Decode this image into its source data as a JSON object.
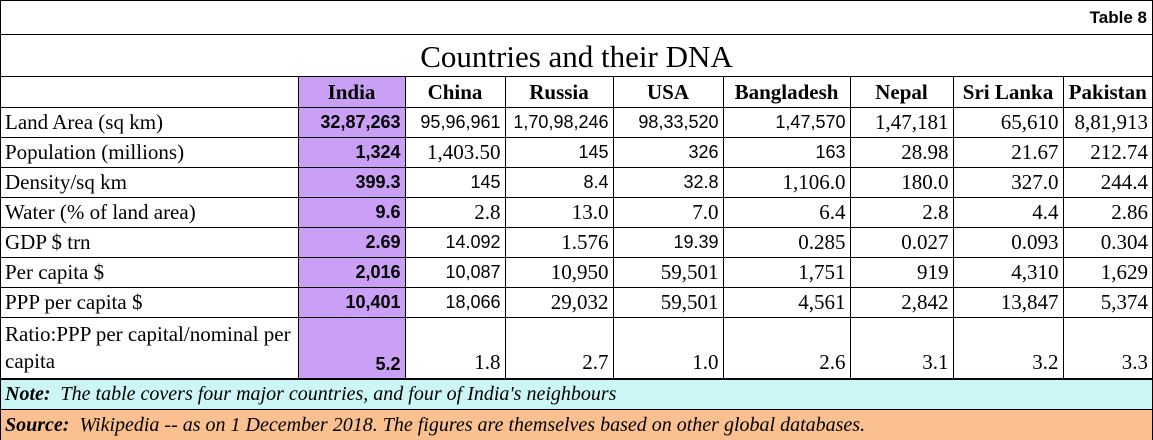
{
  "table_tag": "Table 8",
  "title": "Countries and their DNA",
  "columns": [
    "India",
    "China",
    "Russia",
    "USA",
    "Bangladesh",
    "Nepal",
    "Sri Lanka",
    "Pakistan"
  ],
  "rows": [
    {
      "label": "Land Area (sq km)",
      "values": [
        "32,87,263",
        "95,96,961",
        "1,70,98,246",
        "98,33,520",
        "1,47,570",
        "1,47,181",
        "65,610",
        "8,81,913"
      ]
    },
    {
      "label": "Population (millions)",
      "values": [
        "1,324",
        "1,403.50",
        "145",
        "326",
        "163",
        "28.98",
        "21.67",
        "212.74"
      ]
    },
    {
      "label": "Density/sq km",
      "values": [
        "399.3",
        "145",
        "8.4",
        "32.8",
        "1,106.0",
        "180.0",
        "327.0",
        "244.4"
      ]
    },
    {
      "label": "Water (% of land area)",
      "values": [
        "9.6",
        "2.8",
        "13.0",
        "7.0",
        "6.4",
        "2.8",
        "4.4",
        "2.86"
      ]
    },
    {
      "label": "GDP $ trn",
      "values": [
        "2.69",
        "14.092",
        "1.576",
        "19.39",
        "0.285",
        "0.027",
        "0.093",
        "0.304"
      ]
    },
    {
      "label": "Per capita $",
      "values": [
        "2,016",
        "10,087",
        "10,950",
        "59,501",
        "1,751",
        "919",
        "4,310",
        "1,629"
      ]
    },
    {
      "label": "PPP per capita $",
      "values": [
        "10,401",
        "18,066",
        "29,032",
        "59,501",
        "4,561",
        "2,842",
        "13,847",
        "5,374"
      ]
    },
    {
      "label": "Ratio:PPP per capital/nominal per capita",
      "values": [
        "5.2",
        "1.8",
        "2.7",
        "1.0",
        "2.6",
        "3.1",
        "3.2",
        "3.3"
      ]
    }
  ],
  "note": {
    "label": "Note:",
    "text": "The table covers four major countries, and four of India's neighbours"
  },
  "source": {
    "label": "Source:",
    "text": "Wikipedia  -- as on 1 December 2018. The figures are themselves based on other global databases."
  },
  "colors": {
    "india_highlight": "#c9a0f5",
    "note_bg": "#ccf5f5",
    "source_bg": "#fac090"
  }
}
